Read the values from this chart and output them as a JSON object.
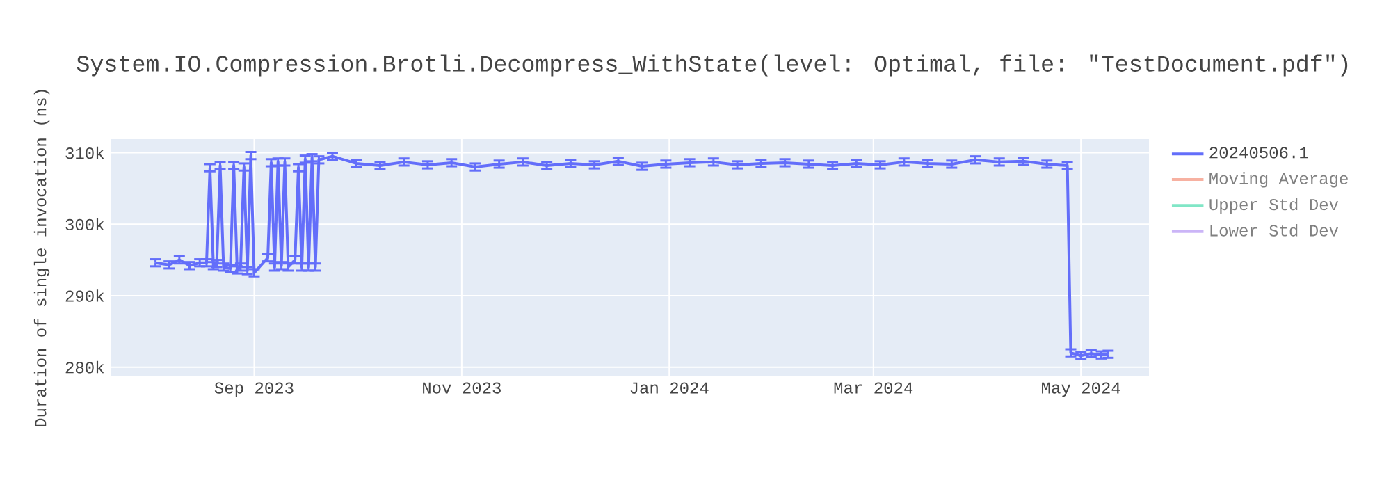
{
  "chart_data": {
    "type": "line",
    "title": "System.IO.Compression.Brotli.Decompress_WithState(level: Optimal, file: \"TestDocument.pdf\")",
    "ylabel": "Duration of single invocation (ns)",
    "x": [
      "2023-08-03",
      "2023-08-07",
      "2023-08-10",
      "2023-08-13",
      "2023-08-16",
      "2023-08-18",
      "2023-08-19",
      "2023-08-20",
      "2023-08-21",
      "2023-08-22",
      "2023-08-23",
      "2023-08-25",
      "2023-08-26",
      "2023-08-27",
      "2023-08-28",
      "2023-08-29",
      "2023-08-30",
      "2023-08-31",
      "2023-09-01",
      "2023-09-05",
      "2023-09-06",
      "2023-09-07",
      "2023-09-08",
      "2023-09-09",
      "2023-09-10",
      "2023-09-11",
      "2023-09-13",
      "2023-09-14",
      "2023-09-15",
      "2023-09-16",
      "2023-09-17",
      "2023-09-18",
      "2023-09-19",
      "2023-09-20",
      "2023-09-24",
      "2023-10-01",
      "2023-10-08",
      "2023-10-15",
      "2023-10-22",
      "2023-10-29",
      "2023-11-05",
      "2023-11-12",
      "2023-11-19",
      "2023-11-26",
      "2023-12-03",
      "2023-12-10",
      "2023-12-17",
      "2023-12-24",
      "2023-12-31",
      "2024-01-07",
      "2024-01-14",
      "2024-01-21",
      "2024-01-28",
      "2024-02-04",
      "2024-02-11",
      "2024-02-18",
      "2024-02-25",
      "2024-03-03",
      "2024-03-10",
      "2024-03-17",
      "2024-03-24",
      "2024-03-31",
      "2024-04-07",
      "2024-04-14",
      "2024-04-21",
      "2024-04-27",
      "2024-04-28",
      "2024-05-01",
      "2024-05-04",
      "2024-05-07",
      "2024-05-09"
    ],
    "series": [
      {
        "name": "20240506.1",
        "color": "#636efa",
        "values": [
          294600,
          294300,
          295000,
          294200,
          294600,
          294600,
          307900,
          294200,
          294500,
          308200,
          294000,
          293800,
          308200,
          293600,
          294000,
          308000,
          293500,
          309600,
          293200,
          295300,
          308600,
          294000,
          308700,
          294200,
          308700,
          294000,
          295000,
          307900,
          294000,
          309100,
          294000,
          309300,
          294000,
          309000,
          309500,
          308500,
          308200,
          308700,
          308300,
          308600,
          308000,
          308400,
          308700,
          308200,
          308500,
          308300,
          308800,
          308100,
          308400,
          308600,
          308700,
          308300,
          308500,
          308600,
          308400,
          308200,
          308500,
          308300,
          308700,
          308500,
          308400,
          309000,
          308700,
          308800,
          308400,
          308200,
          282000,
          281600,
          281900,
          281700,
          281800
        ],
        "errors": [
          500,
          500,
          500,
          500,
          500,
          500,
          500,
          500,
          500,
          500,
          500,
          500,
          500,
          500,
          500,
          500,
          500,
          500,
          500,
          500,
          500,
          500,
          500,
          500,
          500,
          500,
          500,
          500,
          500,
          500,
          500,
          500,
          500,
          500,
          500,
          500,
          500,
          500,
          500,
          500,
          500,
          500,
          500,
          500,
          500,
          500,
          500,
          500,
          500,
          500,
          500,
          500,
          500,
          500,
          500,
          500,
          500,
          500,
          500,
          500,
          500,
          500,
          500,
          500,
          500,
          500,
          500,
          500,
          500,
          500,
          500
        ]
      },
      {
        "name": "Moving Average",
        "color": "#f7b1a1",
        "values": [
          null,
          null,
          null,
          null,
          null,
          null,
          null,
          null,
          null,
          null,
          null,
          null,
          null,
          null,
          null,
          null,
          null,
          null,
          null,
          null,
          null,
          null,
          null,
          null,
          null,
          null,
          null,
          null,
          null,
          null,
          null,
          null,
          null,
          null,
          null,
          null,
          null,
          null,
          null,
          null,
          null,
          null,
          null,
          null,
          null,
          null,
          null,
          null,
          null,
          null,
          null,
          null,
          null,
          null,
          null,
          null,
          null,
          null,
          null,
          null,
          null,
          null,
          null,
          null,
          null,
          null,
          null,
          null,
          null,
          null,
          null
        ]
      },
      {
        "name": "Upper Std Dev",
        "color": "#80e6c6",
        "values": [
          null,
          null,
          null,
          null,
          null,
          null,
          null,
          null,
          null,
          null,
          null,
          null,
          null,
          null,
          null,
          null,
          null,
          null,
          null,
          null,
          null,
          null,
          null,
          null,
          null,
          null,
          null,
          null,
          null,
          null,
          null,
          null,
          null,
          null,
          null,
          null,
          null,
          null,
          null,
          null,
          null,
          null,
          null,
          null,
          null,
          null,
          null,
          null,
          null,
          null,
          null,
          null,
          null,
          null,
          null,
          null,
          null,
          null,
          null,
          null,
          null,
          null,
          null,
          null,
          null,
          null,
          null,
          null,
          null,
          null,
          null
        ]
      },
      {
        "name": "Lower Std Dev",
        "color": "#cbb5f7",
        "values": [
          null,
          null,
          null,
          null,
          null,
          null,
          null,
          null,
          null,
          null,
          null,
          null,
          null,
          null,
          null,
          null,
          null,
          null,
          null,
          null,
          null,
          null,
          null,
          null,
          null,
          null,
          null,
          null,
          null,
          null,
          null,
          null,
          null,
          null,
          null,
          null,
          null,
          null,
          null,
          null,
          null,
          null,
          null,
          null,
          null,
          null,
          null,
          null,
          null,
          null,
          null,
          null,
          null,
          null,
          null,
          null,
          null,
          null,
          null,
          null,
          null,
          null,
          null,
          null,
          null,
          null,
          null,
          null,
          null,
          null,
          null
        ]
      }
    ],
    "xlim": [
      "2023-07-21",
      "2024-05-21"
    ],
    "ylim": [
      278800,
      311900
    ],
    "xticks": [
      {
        "value": "2023-09-01",
        "label": "Sep 2023"
      },
      {
        "value": "2023-11-01",
        "label": "Nov 2023"
      },
      {
        "value": "2024-01-01",
        "label": "Jan 2024"
      },
      {
        "value": "2024-03-01",
        "label": "Mar 2024"
      },
      {
        "value": "2024-05-01",
        "label": "May 2024"
      }
    ],
    "yticks": [
      {
        "value": 280000,
        "label": "280k"
      },
      {
        "value": 290000,
        "label": "290k"
      },
      {
        "value": 300000,
        "label": "300k"
      },
      {
        "value": 310000,
        "label": "310k"
      }
    ],
    "grid": true,
    "legend": "top right"
  }
}
